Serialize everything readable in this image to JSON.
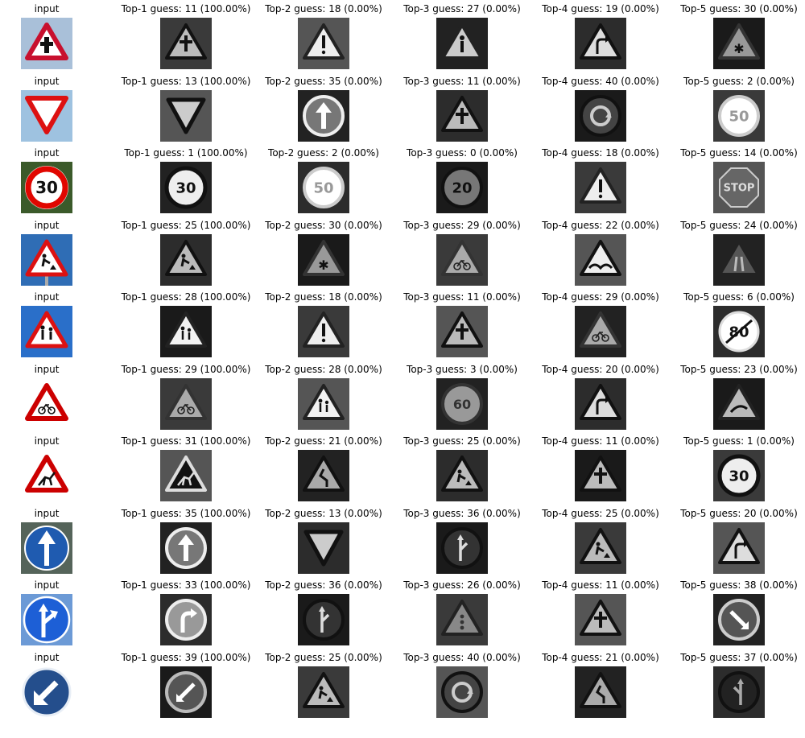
{
  "rows": [
    {
      "input_label": "input",
      "input_sign": "priority-road-triangle",
      "guesses": [
        {
          "label": "Top-1 guess: 11 (100.00%)",
          "sign": "triangle-crossroad"
        },
        {
          "label": "Top-2 guess: 18 (0.00%)",
          "sign": "triangle-exclamation"
        },
        {
          "label": "Top-3 guess: 27 (0.00%)",
          "sign": "triangle-pedestrian"
        },
        {
          "label": "Top-4 guess: 19 (0.00%)",
          "sign": "triangle-curve"
        },
        {
          "label": "Top-5 guess: 30 (0.00%)",
          "sign": "triangle-snow"
        }
      ]
    },
    {
      "input_label": "input",
      "input_sign": "yield",
      "guesses": [
        {
          "label": "Top-1 guess: 13 (100.00%)",
          "sign": "yield"
        },
        {
          "label": "Top-2 guess: 35 (0.00%)",
          "sign": "circle-arrow-up"
        },
        {
          "label": "Top-3 guess: 11 (0.00%)",
          "sign": "triangle-crossroad"
        },
        {
          "label": "Top-4 guess: 40 (0.00%)",
          "sign": "circle-roundabout"
        },
        {
          "label": "Top-5 guess: 2 (0.00%)",
          "sign": "speed-50"
        }
      ]
    },
    {
      "input_label": "input",
      "input_sign": "speed-30-color",
      "guesses": [
        {
          "label": "Top-1 guess: 1 (100.00%)",
          "sign": "speed-30"
        },
        {
          "label": "Top-2 guess: 2 (0.00%)",
          "sign": "speed-50"
        },
        {
          "label": "Top-3 guess: 0 (0.00%)",
          "sign": "speed-20"
        },
        {
          "label": "Top-4 guess: 18 (0.00%)",
          "sign": "triangle-exclamation"
        },
        {
          "label": "Top-5 guess: 14 (0.00%)",
          "sign": "stop"
        }
      ]
    },
    {
      "input_label": "input",
      "input_sign": "roadwork-color",
      "guesses": [
        {
          "label": "Top-1 guess: 25 (100.00%)",
          "sign": "triangle-roadwork"
        },
        {
          "label": "Top-2 guess: 30 (0.00%)",
          "sign": "triangle-snow"
        },
        {
          "label": "Top-3 guess: 29 (0.00%)",
          "sign": "triangle-bicycle"
        },
        {
          "label": "Top-4 guess: 22 (0.00%)",
          "sign": "triangle-bumpy"
        },
        {
          "label": "Top-5 guess: 24 (0.00%)",
          "sign": "triangle-narrow"
        }
      ]
    },
    {
      "input_label": "input",
      "input_sign": "children-color",
      "guesses": [
        {
          "label": "Top-1 guess: 28 (100.00%)",
          "sign": "triangle-children"
        },
        {
          "label": "Top-2 guess: 18 (0.00%)",
          "sign": "triangle-exclamation"
        },
        {
          "label": "Top-3 guess: 11 (0.00%)",
          "sign": "triangle-crossroad"
        },
        {
          "label": "Top-4 guess: 29 (0.00%)",
          "sign": "triangle-bicycle"
        },
        {
          "label": "Top-5 guess: 6 (0.00%)",
          "sign": "end-speed-80"
        }
      ]
    },
    {
      "input_label": "input",
      "input_sign": "bicycle-color",
      "guesses": [
        {
          "label": "Top-1 guess: 29 (100.00%)",
          "sign": "triangle-bicycle"
        },
        {
          "label": "Top-2 guess: 28 (0.00%)",
          "sign": "triangle-children"
        },
        {
          "label": "Top-3 guess: 3 (0.00%)",
          "sign": "speed-60"
        },
        {
          "label": "Top-4 guess: 20 (0.00%)",
          "sign": "triangle-curve"
        },
        {
          "label": "Top-5 guess: 23 (0.00%)",
          "sign": "triangle-slippery"
        }
      ]
    },
    {
      "input_label": "input",
      "input_sign": "deer-color",
      "guesses": [
        {
          "label": "Top-1 guess: 31 (100.00%)",
          "sign": "triangle-deer"
        },
        {
          "label": "Top-2 guess: 21 (0.00%)",
          "sign": "triangle-double-curve"
        },
        {
          "label": "Top-3 guess: 25 (0.00%)",
          "sign": "triangle-roadwork"
        },
        {
          "label": "Top-4 guess: 11 (0.00%)",
          "sign": "triangle-crossroad"
        },
        {
          "label": "Top-5 guess: 1 (0.00%)",
          "sign": "speed-30"
        }
      ]
    },
    {
      "input_label": "input",
      "input_sign": "ahead-only-color",
      "guesses": [
        {
          "label": "Top-1 guess: 35 (100.00%)",
          "sign": "circle-arrow-up"
        },
        {
          "label": "Top-2 guess: 13 (0.00%)",
          "sign": "yield"
        },
        {
          "label": "Top-3 guess: 36 (0.00%)",
          "sign": "circle-straight-right"
        },
        {
          "label": "Top-4 guess: 25 (0.00%)",
          "sign": "triangle-roadwork"
        },
        {
          "label": "Top-5 guess: 20 (0.00%)",
          "sign": "triangle-curve"
        }
      ]
    },
    {
      "input_label": "input",
      "input_sign": "straight-right-color",
      "guesses": [
        {
          "label": "Top-1 guess: 33 (100.00%)",
          "sign": "circle-turn-right"
        },
        {
          "label": "Top-2 guess: 36 (0.00%)",
          "sign": "circle-straight-right"
        },
        {
          "label": "Top-3 guess: 26 (0.00%)",
          "sign": "triangle-signals"
        },
        {
          "label": "Top-4 guess: 11 (0.00%)",
          "sign": "triangle-crossroad"
        },
        {
          "label": "Top-5 guess: 38 (0.00%)",
          "sign": "circle-keep-right"
        }
      ]
    },
    {
      "input_label": "input",
      "input_sign": "keep-left-color",
      "guesses": [
        {
          "label": "Top-1 guess: 39 (100.00%)",
          "sign": "circle-keep-left"
        },
        {
          "label": "Top-2 guess: 25 (0.00%)",
          "sign": "triangle-roadwork"
        },
        {
          "label": "Top-3 guess: 40 (0.00%)",
          "sign": "circle-roundabout"
        },
        {
          "label": "Top-4 guess: 21 (0.00%)",
          "sign": "triangle-double-curve"
        },
        {
          "label": "Top-5 guess: 37 (0.00%)",
          "sign": "circle-straight-left"
        }
      ]
    }
  ]
}
